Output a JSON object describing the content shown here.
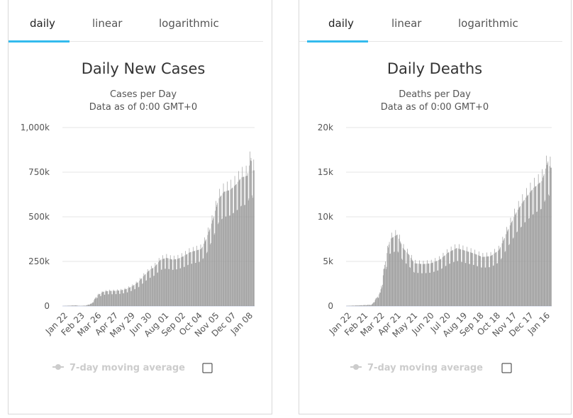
{
  "charts": [
    {
      "tabs": [
        {
          "label": "daily",
          "active": true
        },
        {
          "label": "linear",
          "active": false
        },
        {
          "label": "logarithmic",
          "active": false
        }
      ],
      "legend": {
        "label": "7-day moving average",
        "checked": false
      }
    },
    {
      "tabs": [
        {
          "label": "daily",
          "active": true
        },
        {
          "label": "linear",
          "active": false
        },
        {
          "label": "logarithmic",
          "active": false
        }
      ],
      "legend": {
        "label": "7-day moving average",
        "checked": false
      }
    }
  ],
  "colors": {
    "bar": "#999999",
    "accent": "#33bbee",
    "grid": "#e6e6e6",
    "legend": "#cccccc"
  },
  "chart_data": [
    {
      "type": "bar",
      "title": "Daily New Cases",
      "subtitle_lines": [
        "Cases per Day",
        "Data as of 0:00 GMT+0"
      ],
      "ylim": [
        0,
        1000000
      ],
      "yticks": [
        0,
        250000,
        500000,
        750000,
        1000000
      ],
      "ytick_labels": [
        "0",
        "250k",
        "500k",
        "750k",
        "1,000k"
      ],
      "xtick_labels": [
        "Jan 22",
        "Feb 23",
        "Mar 26",
        "Apr 27",
        "May 29",
        "Jun 30",
        "Aug 01",
        "Sep 02",
        "Oct 04",
        "Nov 05",
        "Dec 07",
        "Jan 08"
      ],
      "grid": true,
      "series": [
        {
          "points": [
            [
              "Jan 22",
              500
            ],
            [
              "Feb 01",
              2000
            ],
            [
              "Feb 15",
              4000
            ],
            [
              "Feb 23",
              1000
            ],
            [
              "Mar 05",
              3000
            ],
            [
              "Mar 16",
              15000
            ],
            [
              "Mar 26",
              60000
            ],
            [
              "Apr 06",
              80000
            ],
            [
              "Apr 16",
              85000
            ],
            [
              "Apr 27",
              85000
            ],
            [
              "May 08",
              88000
            ],
            [
              "May 18",
              95000
            ],
            [
              "May 29",
              110000
            ],
            [
              "Jun 10",
              135000
            ],
            [
              "Jun 20",
              170000
            ],
            [
              "Jun 30",
              200000
            ],
            [
              "Jul 10",
              220000
            ],
            [
              "Jul 21",
              260000
            ],
            [
              "Aug 01",
              270000
            ],
            [
              "Aug 12",
              260000
            ],
            [
              "Aug 22",
              265000
            ],
            [
              "Sep 02",
              280000
            ],
            [
              "Sep 12",
              300000
            ],
            [
              "Sep 23",
              310000
            ],
            [
              "Oct 04",
              320000
            ],
            [
              "Oct 14",
              380000
            ],
            [
              "Oct 25",
              480000
            ],
            [
              "Nov 05",
              600000
            ],
            [
              "Nov 15",
              640000
            ],
            [
              "Nov 26",
              650000
            ],
            [
              "Dec 07",
              680000
            ],
            [
              "Dec 17",
              720000
            ],
            [
              "Dec 28",
              730000
            ],
            [
              "Jan 04",
              830000
            ],
            [
              "Jan 08",
              760000
            ],
            [
              "Jan 10",
              760000
            ]
          ]
        }
      ]
    },
    {
      "type": "bar",
      "title": "Daily Deaths",
      "subtitle_lines": [
        "Deaths per Day",
        "Data as of 0:00 GMT+0"
      ],
      "ylim": [
        0,
        20000
      ],
      "yticks": [
        0,
        5000,
        10000,
        15000,
        20000
      ],
      "ytick_labels": [
        "0",
        "5k",
        "10k",
        "15k",
        "20k"
      ],
      "xtick_labels": [
        "Jan 22",
        "Feb 21",
        "Mar 22",
        "Apr 21",
        "May 21",
        "Jun 20",
        "Jul 20",
        "Aug 19",
        "Sep 18",
        "Oct 18",
        "Nov 17",
        "Dec 17",
        "Jan 16"
      ],
      "grid": true,
      "series": [
        {
          "points": [
            [
              "Jan 22",
              20
            ],
            [
              "Feb 06",
              60
            ],
            [
              "Feb 21",
              100
            ],
            [
              "Mar 07",
              150
            ],
            [
              "Mar 22",
              1500
            ],
            [
              "Mar 31",
              5000
            ],
            [
              "Apr 08",
              7500
            ],
            [
              "Apr 21",
              8000
            ],
            [
              "May 01",
              6500
            ],
            [
              "May 11",
              5800
            ],
            [
              "May 21",
              4800
            ],
            [
              "Jun 05",
              4700
            ],
            [
              "Jun 20",
              4800
            ],
            [
              "Jul 05",
              5200
            ],
            [
              "Jul 20",
              6000
            ],
            [
              "Aug 04",
              6500
            ],
            [
              "Aug 19",
              6200
            ],
            [
              "Sep 03",
              5900
            ],
            [
              "Sep 18",
              5500
            ],
            [
              "Oct 03",
              5600
            ],
            [
              "Oct 18",
              6300
            ],
            [
              "Nov 02",
              8500
            ],
            [
              "Nov 17",
              10500
            ],
            [
              "Dec 02",
              12000
            ],
            [
              "Dec 17",
              13200
            ],
            [
              "Jan 01",
              14000
            ],
            [
              "Jan 12",
              16200
            ],
            [
              "Jan 16",
              15500
            ]
          ]
        }
      ]
    }
  ]
}
